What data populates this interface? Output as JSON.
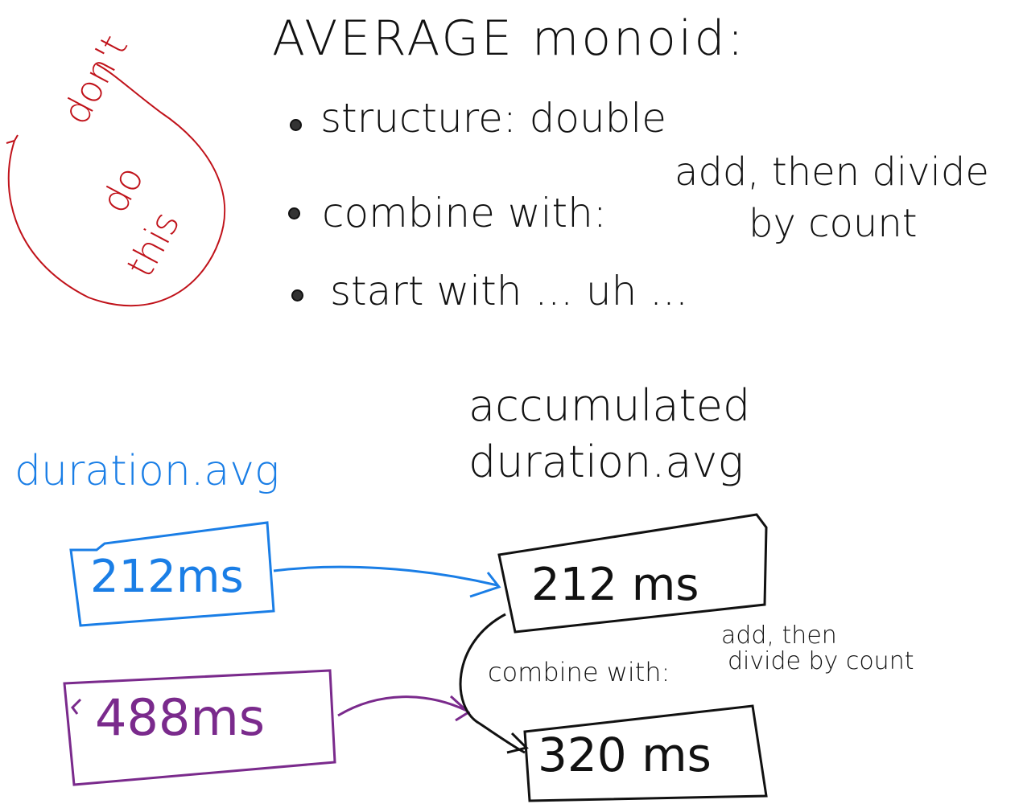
{
  "title": "AVERAGE monoid:",
  "bullets": {
    "structure": "structure: double",
    "combine": "combine with:",
    "combine_rest_1": "add, then divide",
    "combine_rest_2": "by count",
    "start": "start with ... uh ..."
  },
  "warning": {
    "line1": "don't",
    "line2": "do",
    "line3": "this"
  },
  "diagram": {
    "input_label": "duration.avg",
    "accumulated_label_1": "accumulated",
    "accumulated_label_2": "duration.avg",
    "input_values": [
      "212ms",
      "488ms"
    ],
    "accumulated_values": [
      "212 ms",
      "320 ms"
    ],
    "combine_label": "combine with:",
    "combine_rule_1": "add, then",
    "combine_rule_2": "divide by count"
  },
  "colors": {
    "ink": "#111111",
    "warning": "#c0121a",
    "input_1": "#1a7ee6",
    "input_2": "#7a2a8c"
  }
}
